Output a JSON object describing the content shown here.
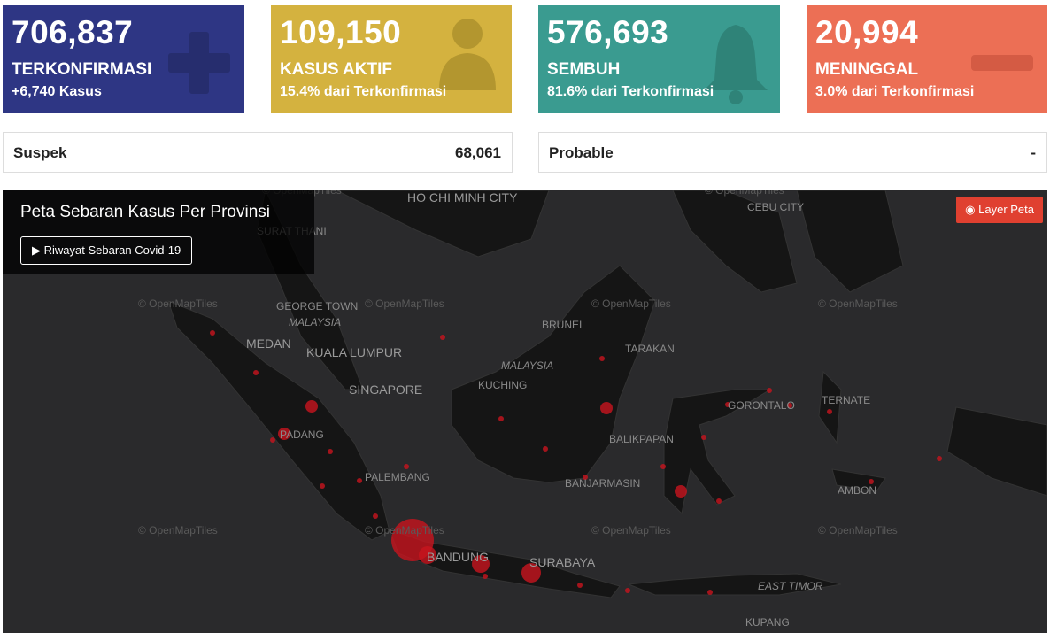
{
  "cards": [
    {
      "value": "706,837",
      "label": "TERKONFIRMASI",
      "sub": "+6,740 Kasus"
    },
    {
      "value": "109,150",
      "label": "KASUS AKTIF",
      "sub": "15.4% dari Terkonfirmasi"
    },
    {
      "value": "576,693",
      "label": "SEMBUH",
      "sub": "81.6% dari Terkonfirmasi"
    },
    {
      "value": "20,994",
      "label": "MENINGGAL",
      "sub": "3.0% dari Terkonfirmasi"
    }
  ],
  "stats": [
    {
      "label": "Suspek",
      "value": "68,061"
    },
    {
      "label": "Probable",
      "value": "-"
    }
  ],
  "map": {
    "title": "Peta Sebaran Kasus Per Provinsi",
    "history_button": "Riwayat Sebaran Covid-19",
    "layer_button": "Layer Peta",
    "attribution": "© OpenMapTiles",
    "places": [
      "HO CHI MINH CITY",
      "CEBU CITY",
      "SURAT THANI",
      "GEORGE TOWN",
      "MALAYSIA",
      "MEDAN",
      "KUALA LUMPUR",
      "SINGAPORE",
      "BRUNEI",
      "MALAYSIA",
      "TARAKAN",
      "KUCHING",
      "GORONTALO",
      "TERNATE",
      "PADANG",
      "BALIKPAPAN",
      "PALEMBANG",
      "BANJARMASIN",
      "AMBON",
      "BANDUNG",
      "SURABAYA",
      "EAST TIMOR",
      "KUPANG"
    ]
  }
}
